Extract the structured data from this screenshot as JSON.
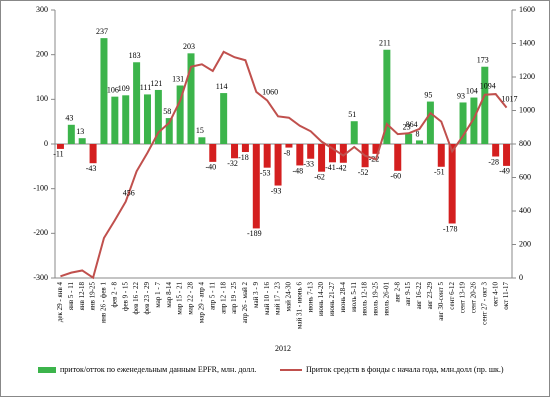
{
  "chart_data": {
    "type": "bar_line",
    "x_label": "2012",
    "categories": [
      "дек 29 - янв 4",
      "янв 5 - 11",
      "янв 12-18",
      "янв 19-25",
      "янв 26 - фев 1",
      "фев 2 - 8",
      "фев 9 - 15",
      "фев 16 - 22",
      "фев 23 - 29",
      "мар 1 - 7",
      "мар 8-14",
      "мар 15 - 21",
      "мар 22 - 28",
      "мар 29 - апр 4",
      "апр 5 - 11",
      "апр 12 - 18",
      "апр 19 - 25",
      "апр 26 - май 2",
      "май 3 - 9",
      "май 10 - 16",
      "май 17 - 23",
      "май 24-30",
      "май 31 - июнь 6",
      "июнь 7-13",
      "июнь 14-20",
      "июнь 21-27",
      "июнь 28-4",
      "июль 5-11",
      "июль 12-18",
      "июль 19-25",
      "июль 26-01",
      "авг 2-8",
      "авг 9-15",
      "авг 16-22",
      "авг 23-29",
      "авг 30-сент 5",
      "сент 6-12",
      "сент 13-19",
      "сент 20-26",
      "сент 27 - окт 3",
      "окт 4-10",
      "окт 11-17"
    ],
    "series": [
      {
        "name": "приток/отток по еженедельным данным EPFR, млн. долл.",
        "type": "bar",
        "color": "#3cb44b",
        "neg_color": "#d41f1f",
        "values": [
          -11,
          43,
          13,
          -43,
          237,
          106,
          109,
          183,
          111,
          121,
          58,
          131,
          203,
          15,
          -40,
          114,
          -32,
          -18,
          -189,
          -53,
          -93,
          -8,
          -48,
          -33,
          -62,
          -41,
          -42,
          51,
          -52,
          -22,
          211,
          -60,
          23,
          8,
          95,
          -51,
          -178,
          93,
          104,
          173,
          -28,
          -49
        ]
      },
      {
        "name": "Приток средств в фонды с начала года, млн.долл (пр. шк.)",
        "type": "line",
        "axis": "y2",
        "color": "#c0504d",
        "values": [
          10,
          32,
          45,
          2,
          239,
          345,
          456,
          637,
          748,
          869,
          927,
          1058,
          1261,
          1276,
          1236,
          1350,
          1318,
          1300,
          1111,
          1060,
          965,
          957,
          909,
          876,
          814,
          773,
          731,
          782,
          730,
          708,
          919,
          859,
          864,
          890,
          985,
          934,
          756,
          849,
          953,
          1094,
          1098,
          1017
        ],
        "value_labels": [
          null,
          null,
          null,
          null,
          null,
          null,
          "456",
          null,
          null,
          null,
          null,
          null,
          null,
          null,
          null,
          null,
          null,
          null,
          null,
          "1060",
          null,
          null,
          null,
          null,
          null,
          null,
          null,
          null,
          null,
          null,
          null,
          null,
          "864",
          null,
          null,
          null,
          null,
          null,
          null,
          "1094",
          null,
          "1017"
        ]
      }
    ],
    "ylim": [
      -300,
      300
    ],
    "yticks": [
      -300,
      -200,
      -100,
      0,
      100,
      200,
      300
    ],
    "y2lim": [
      0,
      1600
    ],
    "y2ticks": [
      0,
      200,
      400,
      600,
      800,
      1000,
      1200,
      1400,
      1600
    ],
    "legend": "bottom"
  }
}
